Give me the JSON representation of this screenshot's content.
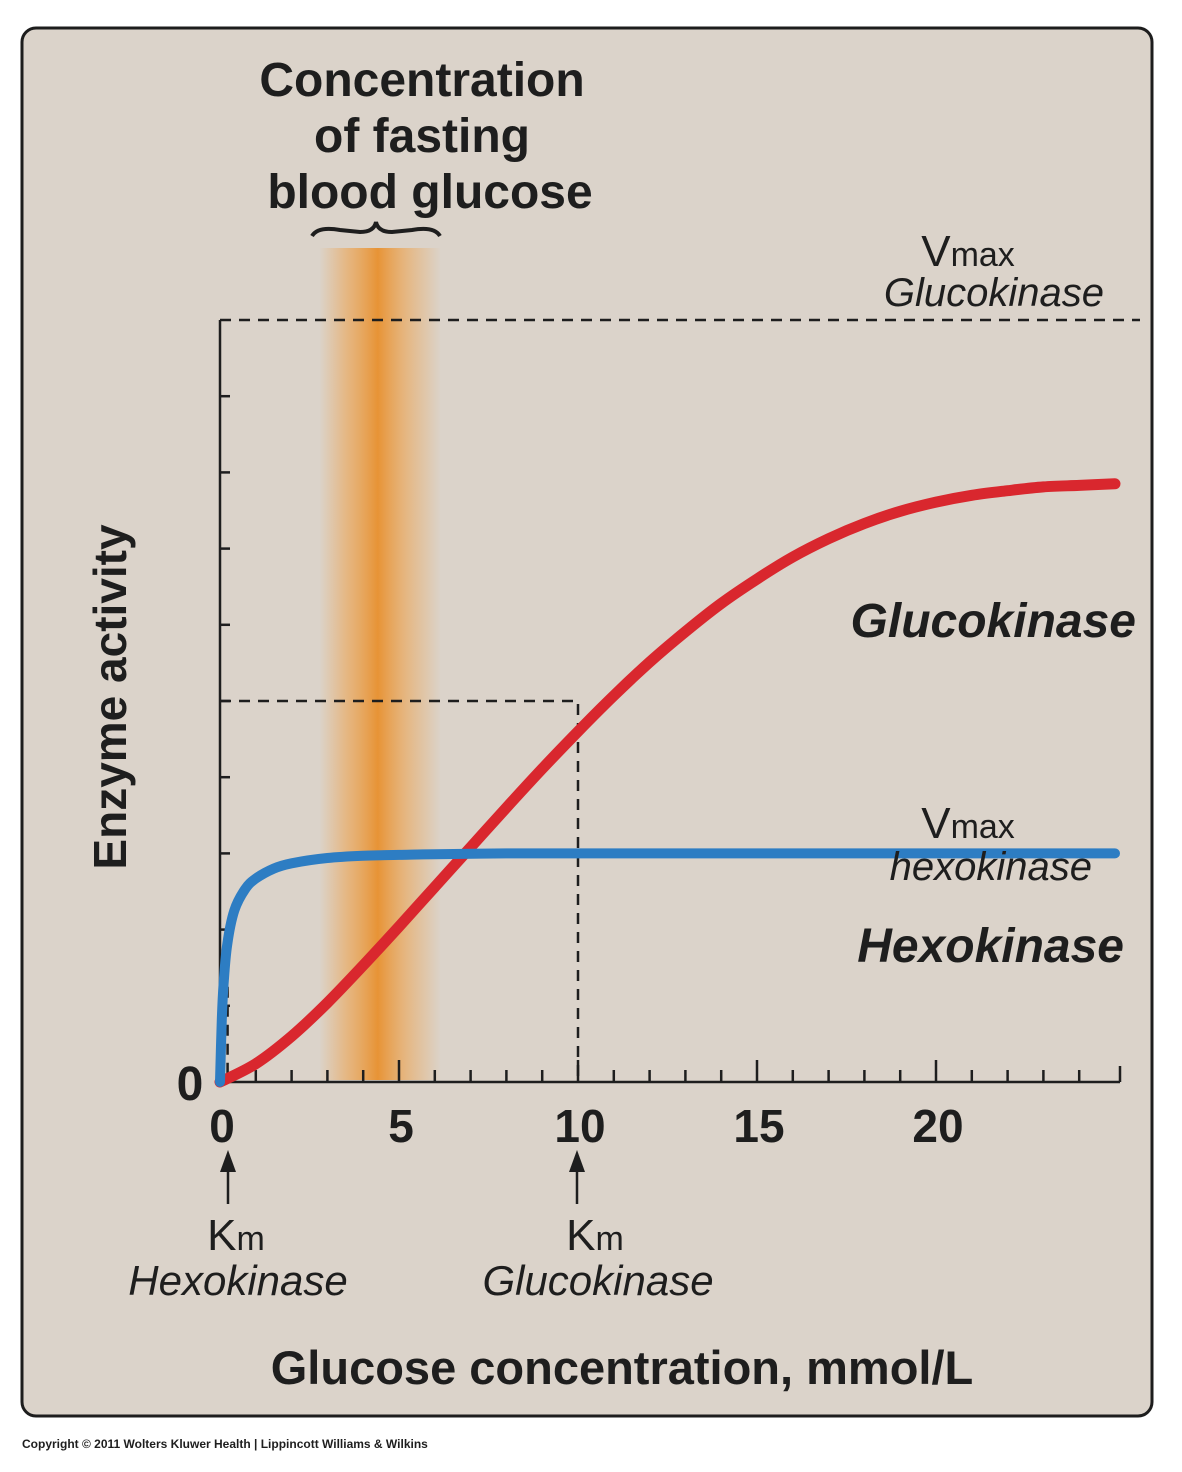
{
  "chart_data": {
    "type": "line",
    "title_lines": [
      "Concentration",
      "of fasting",
      "blood glucose"
    ],
    "xlabel": "Glucose concentration, mmol/L",
    "ylabel": "Enzyme activity",
    "y_zero_label": "0",
    "x_ticks": [
      0,
      5,
      10,
      15,
      20
    ],
    "x_tick_labels": [
      "0",
      "5",
      "10",
      "15",
      "20"
    ],
    "xlim": [
      0,
      25
    ],
    "ylim": [
      0,
      1.0
    ],
    "fasting_glucose_band": [
      3,
      6
    ],
    "series": [
      {
        "name": "Glucokinase",
        "color": "#d9272e",
        "x": [
          0,
          1,
          2,
          3,
          4,
          5,
          6,
          7,
          8,
          9,
          10,
          11,
          12,
          13,
          14,
          15,
          16,
          17,
          18,
          19,
          20,
          21,
          22,
          23,
          24,
          25
        ],
        "values": [
          0,
          0.024,
          0.06,
          0.104,
          0.153,
          0.204,
          0.256,
          0.308,
          0.36,
          0.411,
          0.46,
          0.507,
          0.551,
          0.591,
          0.628,
          0.66,
          0.689,
          0.713,
          0.733,
          0.749,
          0.761,
          0.77,
          0.776,
          0.781,
          0.783,
          0.785
        ]
      },
      {
        "name": "Hexokinase",
        "color": "#2d7dc3",
        "x": [
          0,
          0.05,
          0.1,
          0.2,
          0.4,
          0.7,
          1,
          1.5,
          2,
          3,
          4,
          5,
          6,
          8,
          10,
          15,
          20,
          25
        ],
        "values": [
          0,
          0.082,
          0.129,
          0.18,
          0.225,
          0.253,
          0.267,
          0.28,
          0.287,
          0.294,
          0.297,
          0.298,
          0.299,
          0.3,
          0.3,
          0.3,
          0.3,
          0.3
        ]
      }
    ],
    "reference_lines": {
      "vmax_glucokinase": 1.0,
      "half_vmax_glucokinase": 0.5,
      "km_glucokinase": 10,
      "km_hexokinase": 0.1
    },
    "annotations": {
      "vmax_gk": {
        "v": "V",
        "sub": "max",
        "name": "Glucokinase"
      },
      "vmax_hk": {
        "v": "V",
        "sub": "max",
        "name": "hexokinase"
      },
      "km_hk": {
        "k": "K",
        "sub": "m",
        "name": "Hexokinase"
      },
      "km_gk": {
        "k": "K",
        "sub": "m",
        "name": "Glucokinase"
      },
      "curve_label_gk": "Glucokinase",
      "curve_label_hk": "Hexokinase"
    },
    "band_color": "#eda14a"
  },
  "copyright": "Copyright © 2011 Wolters Kluwer Health | Lippincott Williams & Wilkins"
}
